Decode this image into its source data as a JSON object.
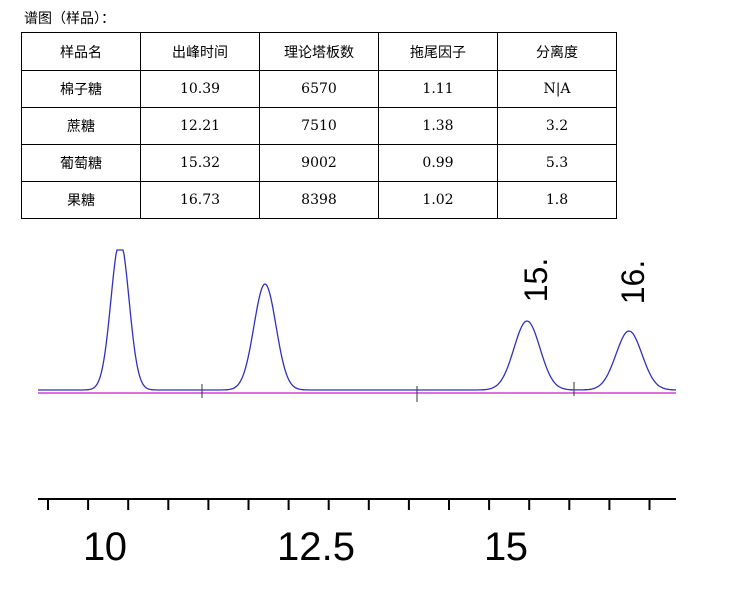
{
  "caption": "谱图（样品）：",
  "table": {
    "header": [
      "样品名",
      "出峰时间",
      "理论塔板数",
      "拖尾因子",
      "分离度"
    ],
    "rows": [
      [
        "棉子糖",
        "10.39",
        "6570",
        "1.11",
        "N|A"
      ],
      [
        "蔗糖",
        "12.21",
        "7510",
        "1.38",
        "3.2"
      ],
      [
        "葡萄糖",
        "15.32",
        "9002",
        "0.99",
        "5.3"
      ],
      [
        "果糖",
        "16.73",
        "8398",
        "1.02",
        "1.8"
      ]
    ]
  },
  "chromatogram": {
    "peak_labels": [
      "15.",
      "16."
    ],
    "axis_labels": [
      "10",
      "12.5",
      "15"
    ]
  }
}
